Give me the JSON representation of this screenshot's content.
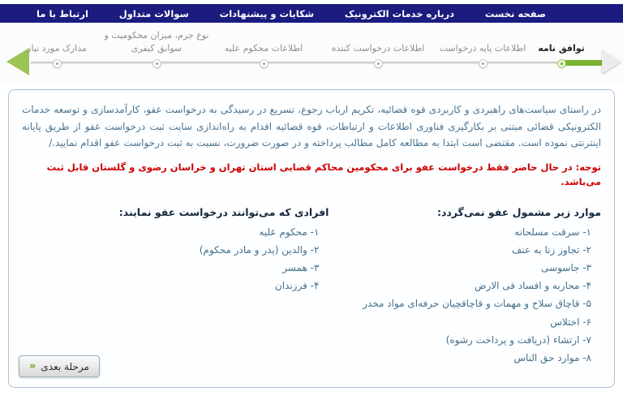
{
  "colors": {
    "navy": "#1b1b80",
    "green": "#79b22e",
    "green-light": "#9dc355",
    "red": "#d10000",
    "border": "#a9c2d8",
    "text": "#4a7492",
    "heading": "#16293f"
  },
  "nav": {
    "items": [
      {
        "label": "صفحه نخست"
      },
      {
        "label": "درباره خدمات الکترونیک"
      },
      {
        "label": "شکایات و پیشنهادات"
      },
      {
        "label": "سوالات متداول"
      },
      {
        "label": "ارتباط با ما"
      }
    ]
  },
  "stepper": {
    "steps": [
      {
        "label": "توافق نامه",
        "current": true
      },
      {
        "label": "اطلاعات پایه درخواست"
      },
      {
        "label": "اطلاعات درخواست کننده"
      },
      {
        "label": "اطلاعات محکوم علیه"
      },
      {
        "label": "نوع جرم، میزان محکومیت و سوابق کیفری"
      },
      {
        "label": "مدارک مورد نیاز"
      }
    ]
  },
  "content": {
    "intro": "در راستای سیاست‌های راهبردی و کاربردی قوه قضائیه، تکریم ارباب رجوع، تسریع در رسیدگی به درخواست عفو، کارآمدسازی و توسعه خدمات الکترونیکی قضائی مبتنی بر بکارگیری فناوری اطلاعات و ارتباطات، قوه قضائیه اقدام به راه‌اندازی سایت ثبت درخواست عفو از طریق پایانه اینترنتی نموده است. مقتضی است ابتدا به مطالعه کامل مطالب پرداخته و در صورت ضرورت، نسبت به ثبت درخواست عفو اقدام نمایید./",
    "notice": "توجه: در حال حاضر فقط درخواست عفو برای محکومین محاکم قضایی استان تهران و خراسان رضوی و گلستان قابل ثبت می‌باشد.",
    "excluded": {
      "title": "موارد زیر مشمول عفو نمی‌گردد:",
      "items": [
        "۱- سرقت مسلحانه",
        "۲- تجاوز زنا به عنف",
        "۳- جاسوسی",
        "۴- محاربه و افساد فی الارض",
        "۵- قاچاق سلاح و مهمات و قاچاقچیان حرفه‌ای مواد مخدر",
        "۶- اختلاس",
        "۷- ارتشاء (دریافت و پرداخت رشوه)",
        "۸- موارد حق الناس"
      ]
    },
    "eligible": {
      "title": "افرادی که می‌توانند درخواست عفو نمایند:",
      "items": [
        "۱- محکوم علیه",
        "۲- والدین (پدر و مادر محکوم)",
        "۳- همسر",
        "۴- فرزندان"
      ]
    },
    "next_button": {
      "label": "مرحلة بعدی",
      "chevrons": "«"
    }
  }
}
